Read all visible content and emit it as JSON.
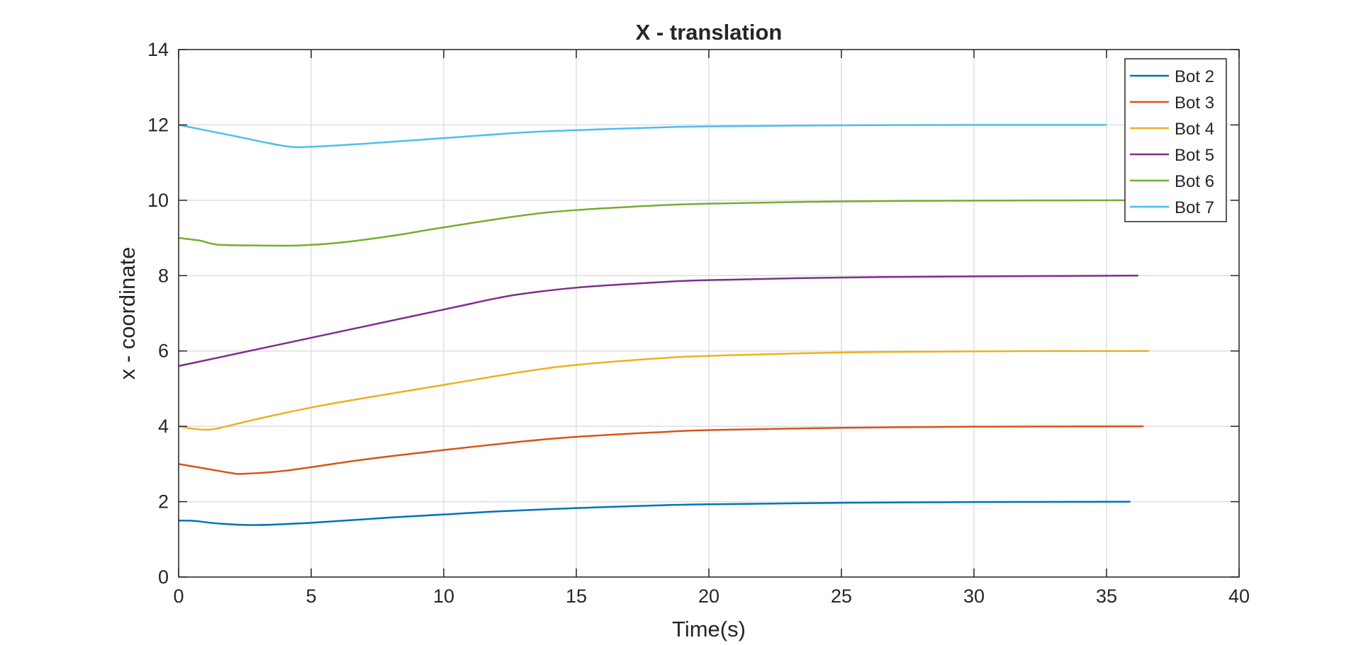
{
  "chart_data": {
    "type": "line",
    "title": "X - translation",
    "xlabel": "Time(s)",
    "ylabel": "x - coordinate",
    "xlim": [
      0,
      40
    ],
    "ylim": [
      0,
      14
    ],
    "xticks": [
      0,
      5,
      10,
      15,
      20,
      25,
      30,
      35,
      40
    ],
    "yticks": [
      0,
      2,
      4,
      6,
      8,
      10,
      12,
      14
    ],
    "grid": true,
    "legend_position": "top-right",
    "series": [
      {
        "name": "Bot 2",
        "color": "#0072BD",
        "x": [
          0,
          0.6,
          1.5,
          2.9,
          5,
          8,
          10,
          12,
          15,
          18,
          20,
          25,
          30,
          35.9
        ],
        "y": [
          1.5,
          1.49,
          1.42,
          1.38,
          1.44,
          1.58,
          1.66,
          1.74,
          1.83,
          1.9,
          1.93,
          1.97,
          1.99,
          2.0
        ]
      },
      {
        "name": "Bot 3",
        "color": "#D95319",
        "x": [
          0,
          1,
          2,
          2.4,
          4,
          7,
          10,
          13,
          15,
          18,
          20,
          25,
          30,
          36.4
        ],
        "y": [
          3.0,
          2.88,
          2.76,
          2.74,
          2.82,
          3.12,
          3.37,
          3.6,
          3.72,
          3.84,
          3.9,
          3.96,
          3.99,
          4.0
        ]
      },
      {
        "name": "Bot 4",
        "color": "#EDB120",
        "x": [
          0,
          0.5,
          1,
          1.5,
          3,
          5,
          7,
          10,
          13,
          15,
          18,
          20,
          25,
          30,
          36.6
        ],
        "y": [
          4.0,
          3.94,
          3.91,
          3.95,
          4.2,
          4.5,
          4.75,
          5.1,
          5.45,
          5.63,
          5.8,
          5.87,
          5.96,
          5.99,
          6.0
        ]
      },
      {
        "name": "Bot 5",
        "color": "#7E2F8E",
        "x": [
          0,
          2,
          5,
          10,
          12,
          13,
          15,
          18,
          20,
          25,
          30,
          36.2
        ],
        "y": [
          5.6,
          5.9,
          6.35,
          7.1,
          7.4,
          7.52,
          7.68,
          7.82,
          7.88,
          7.95,
          7.98,
          8.0
        ]
      },
      {
        "name": "Bot 6",
        "color": "#77AC30",
        "x": [
          0,
          0.8,
          1.5,
          3,
          4.5,
          6,
          8,
          10,
          13,
          15,
          18,
          20,
          25,
          30,
          35,
          37
        ],
        "y": [
          9.0,
          8.93,
          8.82,
          8.8,
          8.8,
          8.87,
          9.05,
          9.28,
          9.6,
          9.74,
          9.86,
          9.91,
          9.97,
          9.99,
          10.0,
          10.0
        ]
      },
      {
        "name": "Bot 7",
        "color": "#4DBEEE",
        "x": [
          0,
          2,
          4,
          5,
          7,
          10,
          13,
          15,
          18,
          20,
          25,
          30,
          35
        ],
        "y": [
          12.0,
          11.72,
          11.44,
          11.42,
          11.5,
          11.65,
          11.8,
          11.86,
          11.93,
          11.96,
          11.99,
          12.0,
          12.0
        ]
      }
    ]
  }
}
